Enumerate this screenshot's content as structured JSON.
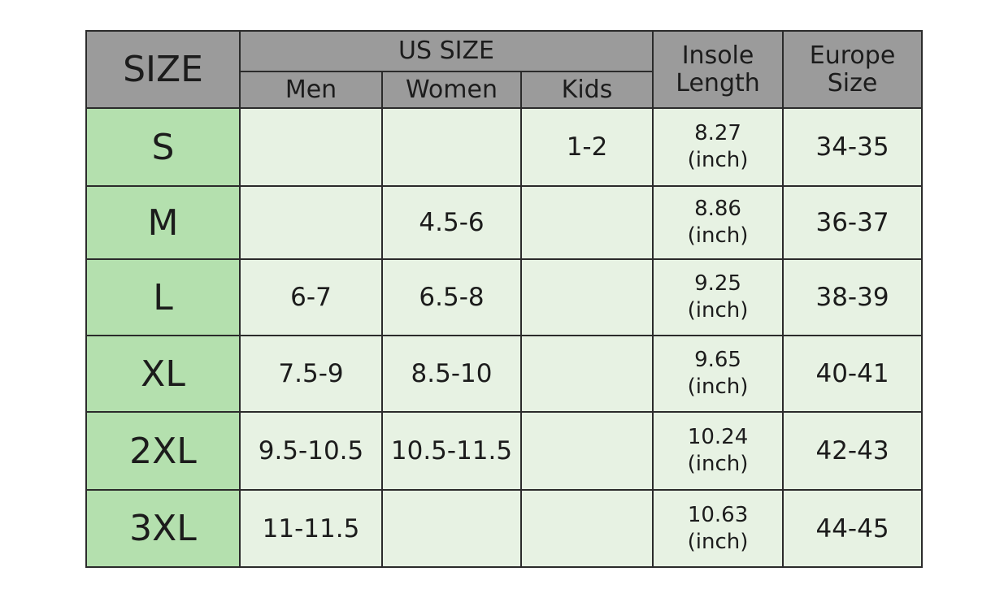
{
  "table": {
    "header": {
      "size": "SIZE",
      "us_size": "US  SIZE",
      "men": "Men",
      "women": "Women",
      "kids": "Kids",
      "insole": "Insole\nLength",
      "europe": "Europe\nSize"
    },
    "rows": [
      [
        "S",
        null,
        null,
        "1-2",
        "8.27\n(inch)",
        "34-35"
      ],
      [
        "M",
        null,
        "4.5-6",
        null,
        "8.86\n(inch)",
        "36-37"
      ],
      [
        "L",
        "6-7",
        "6.5-8",
        null,
        "9.25\n(inch)",
        "38-39"
      ],
      [
        "XL",
        "7.5-9",
        "8.5-10",
        null,
        "9.65\n(inch)",
        "40-41"
      ],
      [
        "2XL",
        "9.5-10.5",
        "10.5-11.5",
        null,
        "10.24\n(inch)",
        "42-43"
      ],
      [
        "3XL",
        "11-11.5",
        null,
        null,
        "10.63\n(inch)",
        "44-45"
      ]
    ]
  }
}
